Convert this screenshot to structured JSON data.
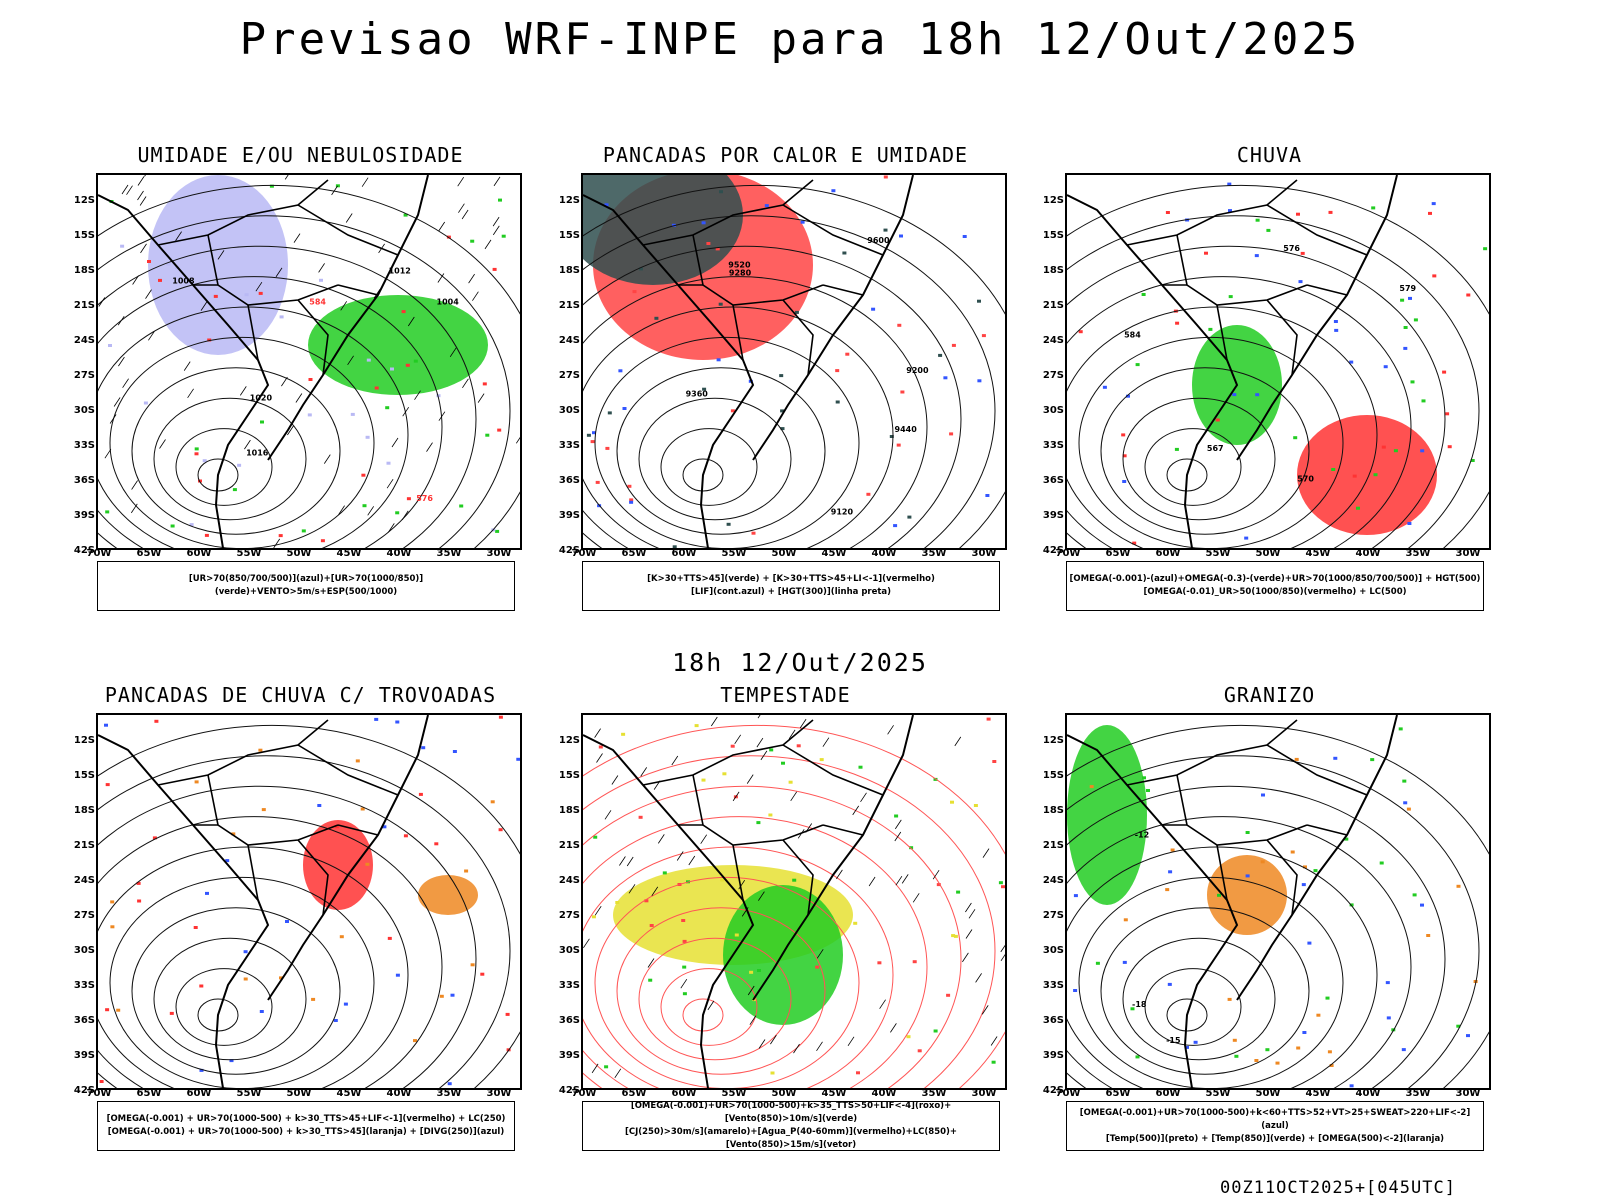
{
  "page": {
    "main_title": "Previsao WRF-INPE  para 18h 12/Out/2025",
    "mid_title": "18h 12/Out/2025",
    "run_label": "00Z11OCT2025+[045UTC]"
  },
  "axes": {
    "lat_labels": [
      "12S",
      "15S",
      "18S",
      "21S",
      "24S",
      "27S",
      "30S",
      "33S",
      "36S",
      "39S",
      "42S"
    ],
    "lon_labels": [
      "70W",
      "65W",
      "60W",
      "55W",
      "50W",
      "45W",
      "40W",
      "35W",
      "30W"
    ]
  },
  "panels": [
    {
      "title": "UMIDADE E/OU NEBULOSIDADE",
      "legend": [
        "[UR>70(850/700/500)](azul)+[UR>70(1000/850)](verde)+VENTO>5m/s+ESP(500/1000)"
      ],
      "colors": [
        "#b9b9f4",
        "#22cc22",
        "#ff3333"
      ]
    },
    {
      "title": "PANCADAS POR CALOR E UMIDADE",
      "legend": [
        "[K>30+TTS>45](verde) + [K>30+TTS>45+LI<-1](vermelho)",
        "[LIF](cont.azul) + [HGT(300)](linha preta)"
      ],
      "colors": [
        "#ff4444",
        "#2f4f4f",
        "#3355ff"
      ]
    },
    {
      "title": "CHUVA",
      "legend": [
        "[OMEGA(-0.001)-(azul)+OMEGA(-0.3)-(verde)+UR>70(1000/850/700/500)] + HGT(500)",
        "[OMEGA(-0.01)_UR>50(1000/850)(vermelho) + LC(500)"
      ],
      "colors": [
        "#ff3333",
        "#22cc22",
        "#3355ff"
      ]
    },
    {
      "title": "PANCADAS DE CHUVA C/ TROVOADAS",
      "legend": [
        "[OMEGA(-0.001) + UR>70(1000-500) + k>30_TTS>45+LIF<-1](vermelho) + LC(250)",
        "[OMEGA(-0.001) + UR>70(1000-500) + k>30_TTS>45](laranja) + [DIVG(250)](azul)"
      ],
      "colors": [
        "#ff3333",
        "#ee8822",
        "#3355ff"
      ]
    },
    {
      "title": "TEMPESTADE",
      "legend": [
        "[OMEGA(-0.001)+UR>70(1000-500)+k>35_TTS>50+LIF<-4](roxo)+[Vento(850)>10m/s](verde)",
        "[CJ(250)>30m/s](amarelo)+[Agua_P(40-60mm)](vermelho)+LC(850)+[Vento(850)>15m/s](vetor)"
      ],
      "colors": [
        "#e6e033",
        "#22cc22",
        "#ff4444"
      ]
    },
    {
      "title": "GRANIZO",
      "legend": [
        "[OMEGA(-0.001)+UR>70(1000-500)+k<60+TTS>52+VT>25+SWEAT>220+LIF<-2](azul)",
        "[Temp(500)](preto) + [Temp(850)](verde) + [OMEGA(500)<-2](laranja)"
      ],
      "colors": [
        "#22cc22",
        "#ee8822",
        "#3355ff"
      ]
    }
  ],
  "contour_labels": {
    "p1": [
      "1004",
      "1008",
      "1012",
      "1016",
      "1020",
      "576",
      "584"
    ],
    "p2": [
      "9600",
      "9520",
      "9440",
      "9360",
      "9280",
      "9200",
      "9120"
    ],
    "p3": [
      "570",
      "576",
      "579",
      "584",
      "567"
    ],
    "p6": [
      "-12",
      "-15",
      "-18"
    ]
  }
}
